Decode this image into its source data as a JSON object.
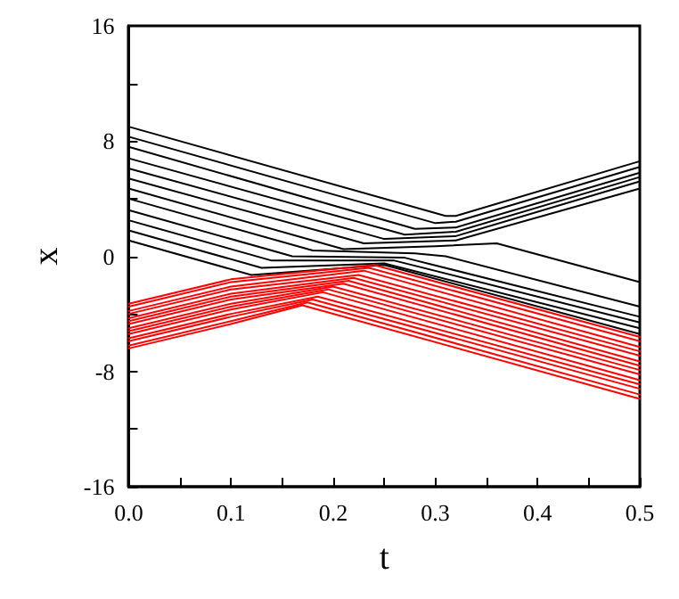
{
  "chart_data": {
    "type": "line",
    "xlabel": "t",
    "ylabel": "x",
    "xlim": [
      0,
      0.5
    ],
    "ylim": [
      -16,
      16
    ],
    "xticks": [
      {
        "value": 0,
        "label": "0.0"
      },
      {
        "value": 0.05,
        "label": null
      },
      {
        "value": 0.1,
        "label": "0.1"
      },
      {
        "value": 0.15,
        "label": null
      },
      {
        "value": 0.2,
        "label": "0.2"
      },
      {
        "value": 0.25,
        "label": null
      },
      {
        "value": 0.3,
        "label": "0.3"
      },
      {
        "value": 0.35,
        "label": null
      },
      {
        "value": 0.4,
        "label": "0.4"
      },
      {
        "value": 0.45,
        "label": null
      },
      {
        "value": 0.5,
        "label": "0.5"
      }
    ],
    "yticks": [
      -16,
      {
        "value": -12,
        "label": null
      },
      -8,
      {
        "value": -4,
        "label": null
      },
      0,
      {
        "value": 4,
        "label": null
      },
      8,
      {
        "value": 12,
        "label": null
      },
      16
    ],
    "grid": false,
    "marker": "none",
    "line_style": "solid",
    "series": [
      {
        "color": "#000000",
        "x": [
          0,
          0.31,
          0.32,
          0.5
        ],
        "values": [
          9,
          2.8,
          2.8,
          6.6
        ]
      },
      {
        "color": "#000000",
        "x": [
          0,
          0.3,
          0.32,
          0.5
        ],
        "values": [
          8.3,
          2.3,
          2.4,
          6.2
        ]
      },
      {
        "color": "#000000",
        "x": [
          0,
          0.28,
          0.32,
          0.5
        ],
        "values": [
          7.6,
          1.9,
          2.0,
          5.8
        ]
      },
      {
        "color": "#000000",
        "x": [
          0,
          0.27,
          0.32,
          0.5
        ],
        "values": [
          6.8,
          1.5,
          1.7,
          5.5
        ]
      },
      {
        "color": "#000000",
        "x": [
          0,
          0.25,
          0.32,
          0.5
        ],
        "values": [
          6.1,
          1.2,
          1.4,
          5.2
        ]
      },
      {
        "color": "#000000",
        "x": [
          0,
          0.23,
          0.32,
          0.5
        ],
        "values": [
          5.4,
          0.9,
          1.1,
          4.7
        ]
      },
      {
        "color": "#000000",
        "x": [
          0,
          0.21,
          0.3,
          0.36,
          0.5
        ],
        "values": [
          4.7,
          0.5,
          0.7,
          0.9,
          -1.8
        ]
      },
      {
        "color": "#000000",
        "x": [
          0,
          0.18,
          0.28,
          0.31,
          0.5
        ],
        "values": [
          4.0,
          0.4,
          0.2,
          0.0,
          -3.5
        ]
      },
      {
        "color": "#000000",
        "x": [
          0,
          0.16,
          0.27,
          0.5
        ],
        "values": [
          3.2,
          0.0,
          -0.1,
          -4.2
        ]
      },
      {
        "color": "#000000",
        "x": [
          0,
          0.14,
          0.26,
          0.5
        ],
        "values": [
          2.5,
          -0.3,
          -0.3,
          -4.6
        ]
      },
      {
        "color": "#000000",
        "x": [
          0,
          0.13,
          0.25,
          0.5
        ],
        "values": [
          1.8,
          -0.8,
          -0.5,
          -5.0
        ]
      },
      {
        "color": "#000000",
        "x": [
          0,
          0.12,
          0.25,
          0.5
        ],
        "values": [
          1.1,
          -1.3,
          -0.6,
          -5.4
        ]
      },
      {
        "color": "#ff0000",
        "x": [
          0,
          0.1,
          0.24,
          0.5
        ],
        "values": [
          -3.3,
          -1.6,
          -0.6,
          -5.6
        ]
      },
      {
        "color": "#ff0000",
        "x": [
          0,
          0.1,
          0.235,
          0.5
        ],
        "values": [
          -3.5,
          -1.8,
          -0.8,
          -5.9
        ]
      },
      {
        "color": "#ff0000",
        "x": [
          0,
          0.1,
          0.23,
          0.5
        ],
        "values": [
          -3.8,
          -2.1,
          -1.0,
          -6.3
        ]
      },
      {
        "color": "#ff0000",
        "x": [
          0,
          0.1,
          0.225,
          0.5
        ],
        "values": [
          -4.0,
          -2.3,
          -1.3,
          -6.6
        ]
      },
      {
        "color": "#ff0000",
        "x": [
          0,
          0.1,
          0.22,
          0.5
        ],
        "values": [
          -4.3,
          -2.6,
          -1.5,
          -6.9
        ]
      },
      {
        "color": "#ff0000",
        "x": [
          0,
          0.1,
          0.215,
          0.5
        ],
        "values": [
          -4.5,
          -2.8,
          -1.7,
          -7.3
        ]
      },
      {
        "color": "#ff0000",
        "x": [
          0,
          0.1,
          0.21,
          0.5
        ],
        "values": [
          -4.7,
          -3.0,
          -1.9,
          -7.6
        ]
      },
      {
        "color": "#ff0000",
        "x": [
          0,
          0.1,
          0.2,
          0.5
        ],
        "values": [
          -5.0,
          -3.3,
          -2.1,
          -7.9
        ]
      },
      {
        "color": "#ff0000",
        "x": [
          0,
          0.1,
          0.195,
          0.5
        ],
        "values": [
          -5.2,
          -3.5,
          -2.3,
          -8.2
        ]
      },
      {
        "color": "#ff0000",
        "x": [
          0,
          0.1,
          0.19,
          0.5
        ],
        "values": [
          -5.4,
          -3.7,
          -2.5,
          -8.6
        ]
      },
      {
        "color": "#ff0000",
        "x": [
          0,
          0.1,
          0.185,
          0.5
        ],
        "values": [
          -5.7,
          -4.0,
          -2.8,
          -8.9
        ]
      },
      {
        "color": "#ff0000",
        "x": [
          0,
          0.1,
          0.18,
          0.5
        ],
        "values": [
          -5.9,
          -4.2,
          -3.0,
          -9.2
        ]
      },
      {
        "color": "#ff0000",
        "x": [
          0,
          0.1,
          0.175,
          0.5
        ],
        "values": [
          -6.2,
          -4.5,
          -3.2,
          -9.6
        ]
      },
      {
        "color": "#ff0000",
        "x": [
          0,
          0.1,
          0.17,
          0.5
        ],
        "values": [
          -6.4,
          -4.7,
          -3.4,
          -9.9
        ]
      }
    ]
  }
}
